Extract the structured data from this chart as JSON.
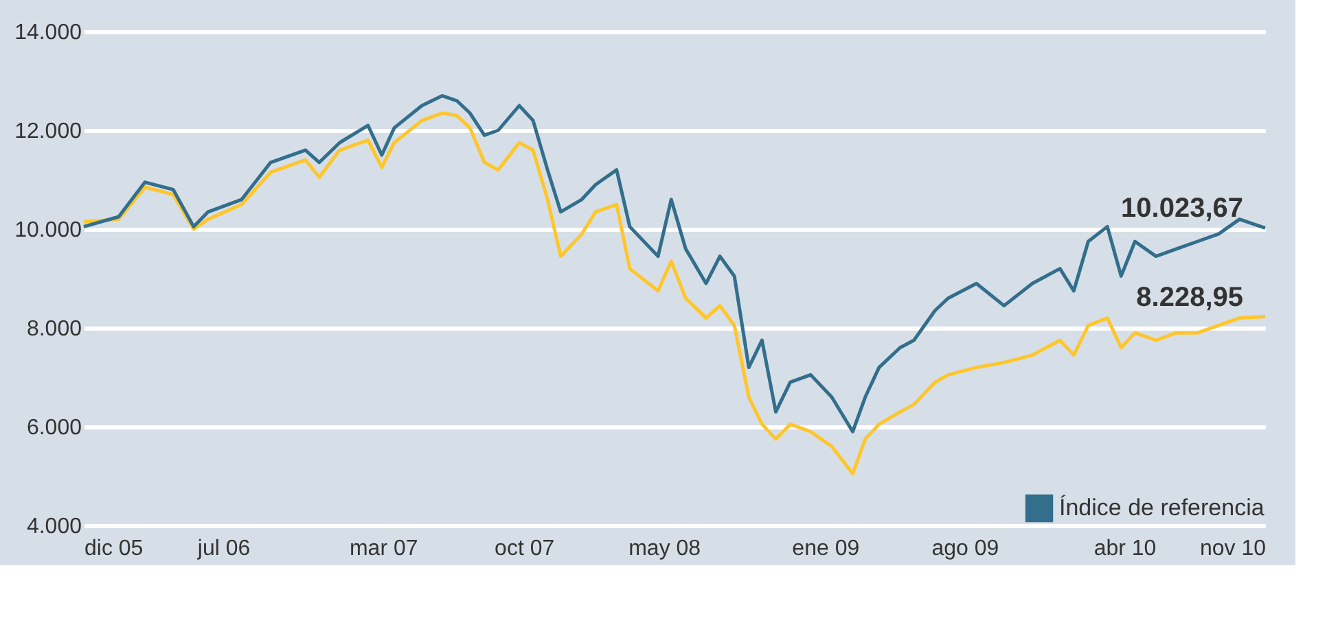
{
  "chart_data": {
    "type": "line",
    "x": [
      "2005-12-01",
      "2006-01-23",
      "2006-03-04",
      "2006-04-16",
      "2006-05-17",
      "2006-06-08",
      "2006-07-29",
      "2006-09-11",
      "2006-11-03",
      "2006-11-24",
      "2006-12-25",
      "2007-02-06",
      "2007-02-27",
      "2007-03-18",
      "2007-04-29",
      "2007-05-30",
      "2007-06-21",
      "2007-07-11",
      "2007-08-02",
      "2007-08-23",
      "2007-09-24",
      "2007-10-15",
      "2007-11-06",
      "2007-11-26",
      "2007-12-28",
      "2008-01-18",
      "2008-02-19",
      "2008-03-10",
      "2008-04-22",
      "2008-05-12",
      "2008-06-03",
      "2008-07-04",
      "2008-07-25",
      "2008-08-16",
      "2008-09-07",
      "2008-09-27",
      "2008-10-18",
      "2008-11-09",
      "2008-12-10",
      "2009-01-11",
      "2009-02-12",
      "2009-03-03",
      "2009-03-24",
      "2009-04-25",
      "2009-05-16",
      "2009-06-17",
      "2009-07-07",
      "2009-08-19",
      "2009-09-30",
      "2009-11-12",
      "2009-12-24",
      "2010-01-14",
      "2010-02-05",
      "2010-03-06",
      "2010-03-27",
      "2010-04-17",
      "2010-05-19",
      "2010-06-19",
      "2010-07-21",
      "2010-08-22",
      "2010-09-23",
      "2010-11-01"
    ],
    "series": [
      {
        "color": "#ffc62b",
        "values": [
          10150,
          10200,
          10850,
          10700,
          10000,
          10200,
          10500,
          11150,
          11400,
          11050,
          11600,
          11800,
          11250,
          11750,
          12200,
          12350,
          12300,
          12050,
          11350,
          11200,
          11750,
          11600,
          10600,
          9450,
          9900,
          10350,
          10500,
          9200,
          8750,
          9350,
          8600,
          8200,
          8450,
          8050,
          6600,
          6050,
          5750,
          6050,
          5900,
          5600,
          5050,
          5750,
          6050,
          6300,
          6450,
          6900,
          7050,
          7200,
          7300,
          7450,
          7750,
          7450,
          8050,
          8200,
          7600,
          7900,
          7750,
          7900,
          7900,
          8050,
          8200,
          8228.95
        ]
      },
      {
        "name": "Índice de referencia",
        "color": "#336e8c",
        "values": [
          10050,
          10250,
          10950,
          10800,
          10050,
          10350,
          10600,
          11350,
          11600,
          11350,
          11750,
          12100,
          11500,
          12050,
          12500,
          12700,
          12600,
          12350,
          11900,
          12000,
          12500,
          12200,
          11200,
          10350,
          10600,
          10900,
          11200,
          10050,
          9450,
          10600,
          9600,
          8900,
          9450,
          9050,
          7200,
          7750,
          6300,
          6900,
          7050,
          6600,
          5900,
          6600,
          7200,
          7600,
          7750,
          8350,
          8600,
          8900,
          8450,
          8900,
          9200,
          8750,
          9750,
          10050,
          9050,
          9750,
          9450,
          9600,
          9750,
          9900,
          10200,
          10023.67
        ]
      }
    ],
    "annotations": [
      {
        "text": "10.023,67",
        "x": "2010-11-01",
        "y": 10023.67
      },
      {
        "text": "8.228,95",
        "x": "2010-11-01",
        "y": 8228.95
      }
    ],
    "xlim": [
      "2005-12-01",
      "2010-11-01"
    ],
    "xticks": [
      {
        "value": "2005-12-01",
        "label": "dic 05"
      },
      {
        "value": "2006-07-01",
        "label": "jul 06"
      },
      {
        "value": "2007-03-01",
        "label": "mar 07"
      },
      {
        "value": "2007-10-01",
        "label": "oct 07"
      },
      {
        "value": "2008-05-01",
        "label": "may 08"
      },
      {
        "value": "2009-01-01",
        "label": "ene 09"
      },
      {
        "value": "2009-08-01",
        "label": "ago 09"
      },
      {
        "value": "2010-04-01",
        "label": "abr 10"
      },
      {
        "value": "2010-11-01",
        "label": "nov 10"
      }
    ],
    "ylim": [
      4000,
      14000
    ],
    "yticks": [
      {
        "value": 4000,
        "label": "4.000"
      },
      {
        "value": 6000,
        "label": "6.000"
      },
      {
        "value": 8000,
        "label": "8.000"
      },
      {
        "value": 10000,
        "label": "10.000"
      },
      {
        "value": 12000,
        "label": "12.000"
      },
      {
        "value": 14000,
        "label": "14.000"
      }
    ],
    "grid": "y",
    "legend": "bottom right",
    "marker": "none",
    "line_style": "solid"
  }
}
